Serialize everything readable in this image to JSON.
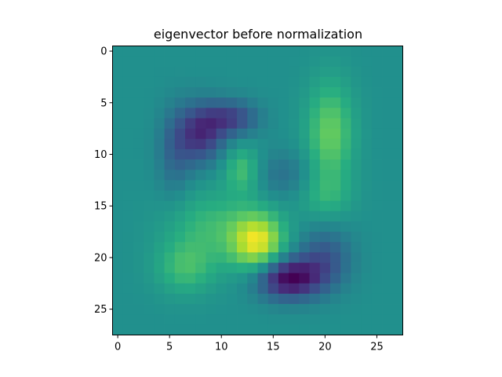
{
  "chart_data": {
    "type": "heatmap",
    "title": "eigenvector before normalization",
    "colormap": "viridis",
    "rows": 28,
    "cols": 28,
    "x_ticks": [
      "0",
      "5",
      "10",
      "15",
      "20",
      "25"
    ],
    "y_ticks": [
      "0",
      "5",
      "10",
      "15",
      "20",
      "25"
    ],
    "xlim": [
      -0.5,
      27.5
    ],
    "ylim": [
      27.5,
      -0.5
    ],
    "background_value": 0.5,
    "features": [
      {
        "row": 8,
        "col": 8,
        "sigma_r": 2.0,
        "sigma_c": 1.6,
        "amp": -0.35
      },
      {
        "row": 6.5,
        "col": 11,
        "sigma_r": 1.2,
        "sigma_c": 1.8,
        "amp": -0.28
      },
      {
        "row": 10,
        "col": 5.5,
        "sigma_r": 3.0,
        "sigma_c": 1.2,
        "amp": -0.15
      },
      {
        "row": 8,
        "col": 20.5,
        "sigma_r": 3.5,
        "sigma_c": 1.6,
        "amp": 0.27
      },
      {
        "row": 11.5,
        "col": 12,
        "sigma_r": 1.6,
        "sigma_c": 1.2,
        "amp": 0.2
      },
      {
        "row": 12,
        "col": 16,
        "sigma_r": 1.6,
        "sigma_c": 2.0,
        "amp": -0.12
      },
      {
        "row": 18.5,
        "col": 13.5,
        "sigma_r": 2.0,
        "sigma_c": 1.8,
        "amp": 0.45
      },
      {
        "row": 17,
        "col": 9,
        "sigma_r": 2.5,
        "sigma_c": 3.0,
        "amp": 0.17
      },
      {
        "row": 21,
        "col": 6.5,
        "sigma_r": 1.8,
        "sigma_c": 2.0,
        "amp": 0.18
      },
      {
        "row": 22,
        "col": 16.5,
        "sigma_r": 1.4,
        "sigma_c": 2.2,
        "amp": -0.5
      },
      {
        "row": 20,
        "col": 20,
        "sigma_r": 2.0,
        "sigma_c": 1.8,
        "amp": -0.22
      },
      {
        "row": 14,
        "col": 20,
        "sigma_r": 1.6,
        "sigma_c": 1.8,
        "amp": 0.12
      }
    ]
  }
}
